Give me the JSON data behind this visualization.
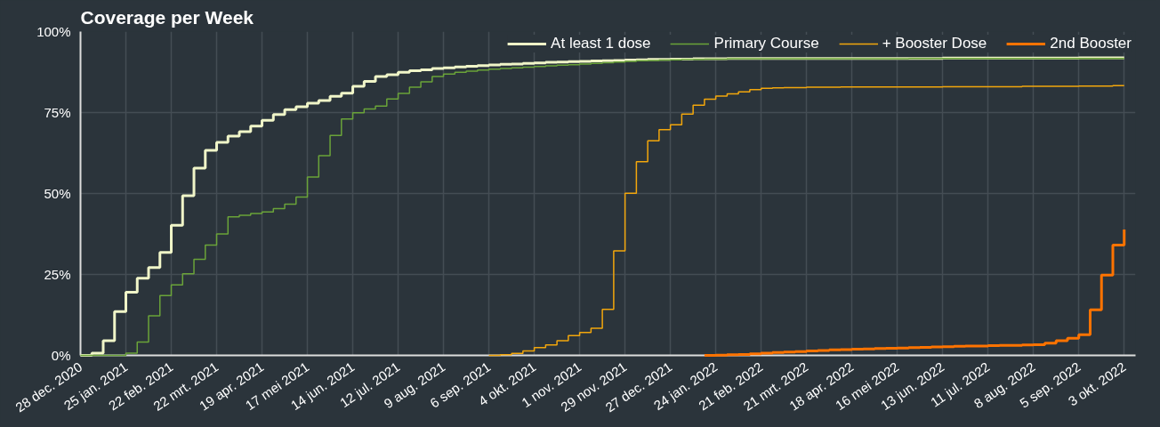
{
  "chart_data": {
    "type": "step",
    "title": "Coverage per Week",
    "x": [
      "2020-12-28",
      "2021-01-04",
      "2021-01-11",
      "2021-01-18",
      "2021-01-25",
      "2021-02-01",
      "2021-02-08",
      "2021-02-15",
      "2021-02-22",
      "2021-03-01",
      "2021-03-08",
      "2021-03-15",
      "2021-03-22",
      "2021-03-29",
      "2021-04-05",
      "2021-04-12",
      "2021-04-19",
      "2021-04-26",
      "2021-05-03",
      "2021-05-10",
      "2021-05-17",
      "2021-05-24",
      "2021-05-31",
      "2021-06-07",
      "2021-06-14",
      "2021-06-21",
      "2021-06-28",
      "2021-07-05",
      "2021-07-12",
      "2021-07-19",
      "2021-07-26",
      "2021-08-02",
      "2021-08-09",
      "2021-08-16",
      "2021-08-23",
      "2021-08-30",
      "2021-09-06",
      "2021-09-13",
      "2021-09-20",
      "2021-09-27",
      "2021-10-04",
      "2021-10-11",
      "2021-10-18",
      "2021-10-25",
      "2021-11-01",
      "2021-11-08",
      "2021-11-15",
      "2021-11-22",
      "2021-11-29",
      "2021-12-06",
      "2021-12-13",
      "2021-12-20",
      "2021-12-27",
      "2022-01-03",
      "2022-01-10",
      "2022-01-17",
      "2022-01-24",
      "2022-01-31",
      "2022-02-07",
      "2022-02-14",
      "2022-02-21",
      "2022-02-28",
      "2022-03-07",
      "2022-03-14",
      "2022-03-21",
      "2022-03-28",
      "2022-04-04",
      "2022-04-11",
      "2022-04-18",
      "2022-04-25",
      "2022-05-02",
      "2022-05-09",
      "2022-05-16",
      "2022-05-23",
      "2022-05-30",
      "2022-06-06",
      "2022-06-13",
      "2022-06-20",
      "2022-06-27",
      "2022-07-04",
      "2022-07-11",
      "2022-07-18",
      "2022-07-25",
      "2022-08-01",
      "2022-08-08",
      "2022-08-15",
      "2022-08-22",
      "2022-08-29",
      "2022-09-05",
      "2022-09-12",
      "2022-09-19",
      "2022-09-26",
      "2022-10-03"
    ],
    "series": [
      {
        "name": "At least 1 dose",
        "color": "#f0f5c8",
        "values": [
          0,
          0.7,
          4.5,
          13.5,
          19.5,
          23.8,
          27.1,
          31.8,
          40.2,
          49.3,
          57.8,
          63.3,
          65.8,
          67.7,
          69.1,
          70.8,
          72.6,
          74.4,
          75.9,
          76.8,
          77.9,
          78.7,
          80,
          81,
          83.1,
          84.6,
          86.1,
          86.7,
          87.4,
          87.9,
          88.2,
          88.6,
          88.8,
          89.1,
          89.3,
          89.5,
          89.7,
          89.9,
          90,
          90.2,
          90.3,
          90.5,
          90.6,
          90.7,
          90.8,
          90.9,
          91,
          91.1,
          91.2,
          91.3,
          91.4,
          91.4,
          91.5,
          91.5,
          91.6,
          91.6,
          91.6,
          91.7,
          91.7,
          91.7,
          91.7,
          91.7,
          91.7,
          91.7,
          91.7,
          91.7,
          91.7,
          91.7,
          91.7,
          91.7,
          91.7,
          91.7,
          91.7,
          91.7,
          91.7,
          91.7,
          91.8,
          91.8,
          91.8,
          91.8,
          91.8,
          91.8,
          91.8,
          91.8,
          91.8,
          91.8,
          91.8,
          91.8,
          91.9,
          91.9,
          91.9,
          91.9,
          91.9
        ]
      },
      {
        "name": "Primary Course",
        "color": "#6aa339",
        "values": [
          0,
          0,
          0,
          0,
          0.7,
          4.1,
          12.2,
          18.5,
          21.8,
          25.2,
          29.7,
          34.1,
          37.5,
          42.8,
          43.3,
          43.8,
          44.3,
          45.3,
          46.7,
          48.9,
          55.1,
          61.7,
          67.9,
          73,
          74.9,
          76.1,
          77,
          79.2,
          80.9,
          82.8,
          84.5,
          86.1,
          86.9,
          87.4,
          87.8,
          88.1,
          88.4,
          88.6,
          88.8,
          89,
          89.2,
          89.4,
          89.6,
          89.8,
          90,
          90.2,
          90.4,
          90.6,
          90.8,
          91,
          91.1,
          91.2,
          91.3,
          91.4,
          91.4,
          91.5,
          91.5,
          91.6,
          91.6,
          91.6,
          91.6,
          91.6,
          91.6,
          91.6,
          91.6,
          91.6,
          91.6,
          91.6,
          91.6,
          91.6,
          91.6,
          91.6,
          91.6,
          91.7,
          91.7,
          91.7,
          91.7,
          91.7,
          91.7,
          91.7,
          91.7,
          91.7,
          91.7,
          91.7,
          91.7,
          91.7,
          91.7,
          91.7,
          91.7,
          91.7,
          91.7,
          91.7,
          91.7
        ]
      },
      {
        "name": "+ Booster Dose",
        "color": "#f2a60c",
        "values": [
          null,
          null,
          null,
          null,
          null,
          null,
          null,
          null,
          null,
          null,
          null,
          null,
          null,
          null,
          null,
          null,
          null,
          null,
          null,
          null,
          null,
          null,
          null,
          null,
          null,
          null,
          null,
          null,
          null,
          null,
          null,
          null,
          null,
          null,
          null,
          null,
          0,
          0.2,
          0.6,
          1.4,
          2.4,
          3.2,
          4.5,
          6.1,
          7.1,
          8.4,
          14.2,
          32.3,
          50.1,
          59.8,
          66.3,
          69.7,
          71.2,
          74.5,
          77.3,
          79.1,
          80.1,
          80.8,
          81.4,
          82.1,
          82.5,
          82.6,
          82.7,
          82.7,
          82.8,
          82.8,
          82.8,
          82.9,
          82.9,
          82.9,
          82.9,
          82.9,
          82.9,
          82.9,
          82.9,
          82.9,
          83,
          83,
          83,
          83,
          83,
          83,
          83,
          83.1,
          83.1,
          83.1,
          83.1,
          83.1,
          83.2,
          83.2,
          83.2,
          83.3,
          83.3
        ]
      },
      {
        "name": "2nd Booster",
        "color": "#ff7300",
        "values": [
          null,
          null,
          null,
          null,
          null,
          null,
          null,
          null,
          null,
          null,
          null,
          null,
          null,
          null,
          null,
          null,
          null,
          null,
          null,
          null,
          null,
          null,
          null,
          null,
          null,
          null,
          null,
          null,
          null,
          null,
          null,
          null,
          null,
          null,
          null,
          null,
          null,
          null,
          null,
          null,
          null,
          null,
          null,
          null,
          null,
          null,
          null,
          null,
          null,
          null,
          null,
          null,
          null,
          null,
          null,
          0,
          0.1,
          0.2,
          0.3,
          0.5,
          0.7,
          0.9,
          1,
          1.2,
          1.4,
          1.5,
          1.7,
          1.8,
          1.9,
          2,
          2.1,
          2.2,
          2.3,
          2.4,
          2.5,
          2.6,
          2.7,
          2.8,
          2.9,
          2.9,
          3,
          3.1,
          3.1,
          3.2,
          3.3,
          3.8,
          4.5,
          5.3,
          6.4,
          14.1,
          24.8,
          34.1,
          38.9
        ]
      }
    ],
    "xlim": [
      "2020-12-28",
      "2022-10-10"
    ],
    "xticks": [
      {
        "value": "2020-12-28",
        "label": "28 dec. 2020"
      },
      {
        "value": "2021-01-25",
        "label": "25 jan. 2021"
      },
      {
        "value": "2021-02-22",
        "label": "22 feb. 2021"
      },
      {
        "value": "2021-03-22",
        "label": "22 mrt. 2021"
      },
      {
        "value": "2021-04-19",
        "label": "19 apr. 2021"
      },
      {
        "value": "2021-05-17",
        "label": "17 mei 2021"
      },
      {
        "value": "2021-06-14",
        "label": "14 jun. 2021"
      },
      {
        "value": "2021-07-12",
        "label": "12 jul. 2021"
      },
      {
        "value": "2021-08-09",
        "label": "9 aug. 2021"
      },
      {
        "value": "2021-09-06",
        "label": "6 sep. 2021"
      },
      {
        "value": "2021-10-04",
        "label": "4 okt. 2021"
      },
      {
        "value": "2021-11-01",
        "label": "1 nov. 2021"
      },
      {
        "value": "2021-11-29",
        "label": "29 nov. 2021"
      },
      {
        "value": "2021-12-27",
        "label": "27 dec. 2021"
      },
      {
        "value": "2022-01-24",
        "label": "24 jan. 2022"
      },
      {
        "value": "2022-02-21",
        "label": "21 feb. 2022"
      },
      {
        "value": "2022-03-21",
        "label": "21 mrt. 2022"
      },
      {
        "value": "2022-04-18",
        "label": "18 apr. 2022"
      },
      {
        "value": "2022-05-16",
        "label": "16 mei 2022"
      },
      {
        "value": "2022-06-13",
        "label": "13 jun. 2022"
      },
      {
        "value": "2022-07-11",
        "label": "11 jul. 2022"
      },
      {
        "value": "2022-08-08",
        "label": "8 aug. 2022"
      },
      {
        "value": "2022-09-05",
        "label": "5 sep. 2022"
      },
      {
        "value": "2022-10-03",
        "label": "3 okt. 2022"
      }
    ],
    "ylim": [
      0,
      100
    ],
    "yticks": [
      {
        "value": 0,
        "label": "0%"
      },
      {
        "value": 25,
        "label": "25%"
      },
      {
        "value": 50,
        "label": "50%"
      },
      {
        "value": 75,
        "label": "75%"
      },
      {
        "value": 100,
        "label": "100%"
      }
    ],
    "grid": true,
    "legend": "top right"
  }
}
